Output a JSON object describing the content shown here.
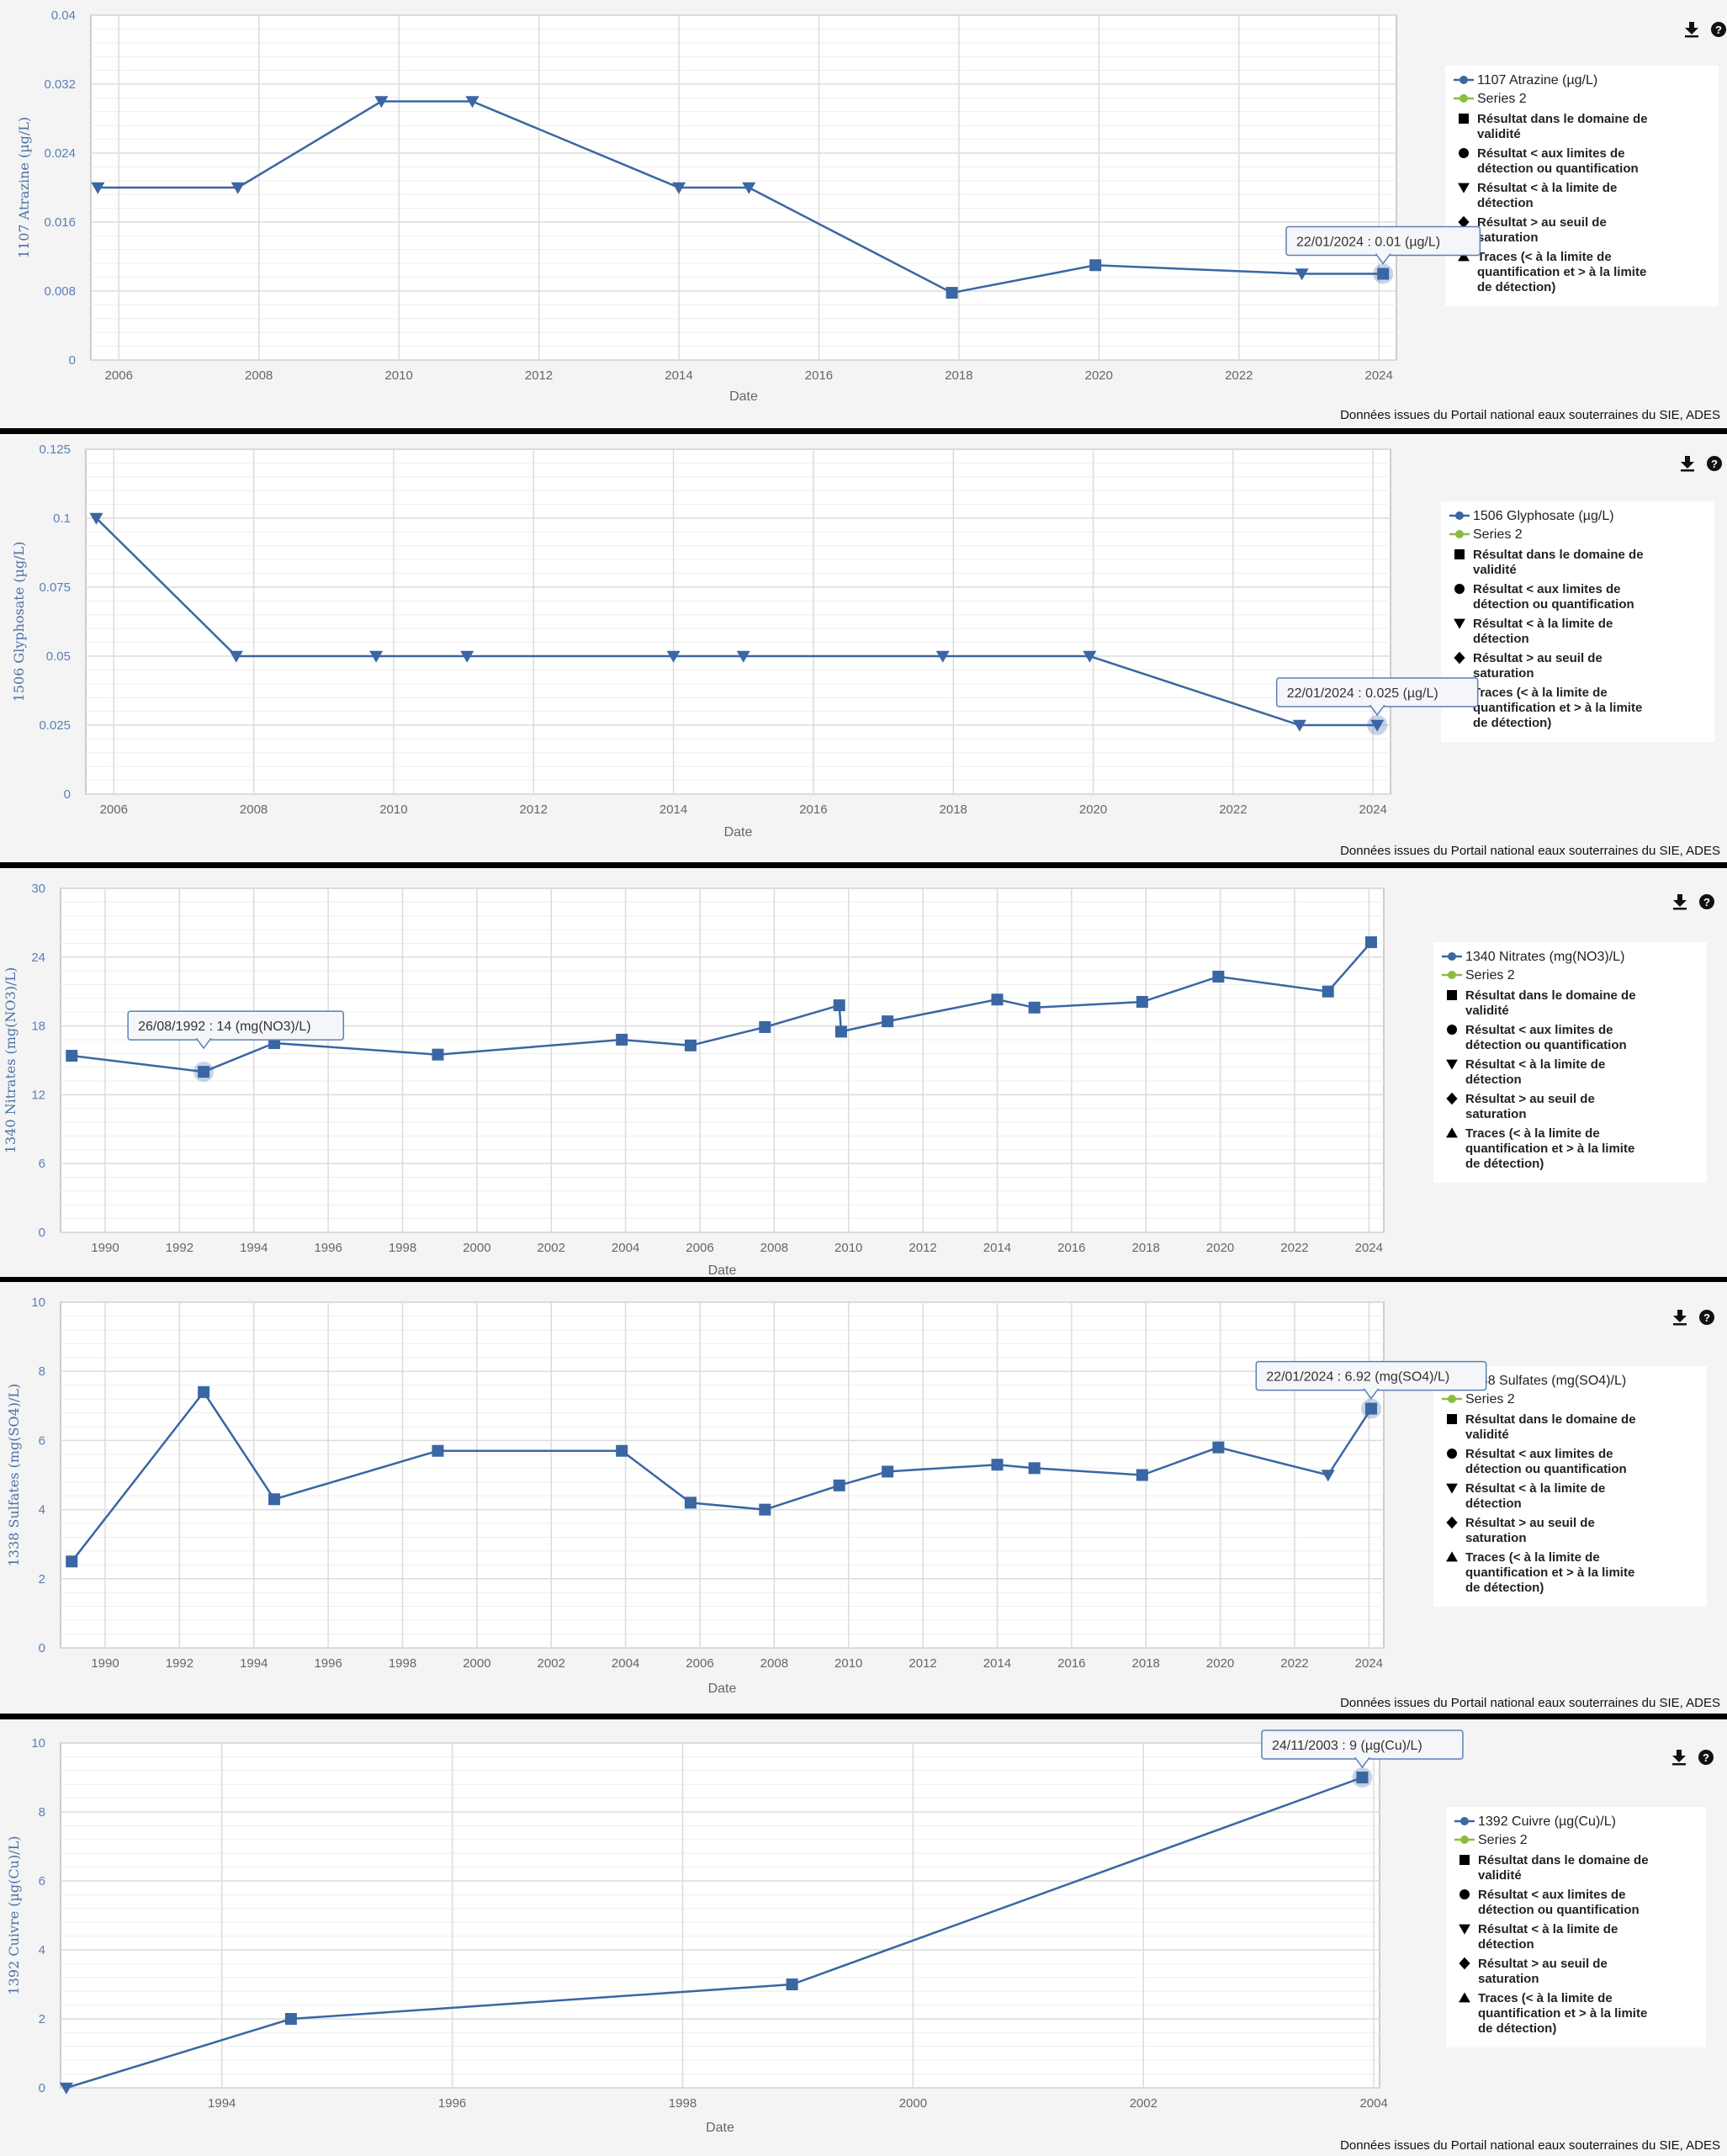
{
  "credits": "Données issues du Portail national eaux souterraines du SIE, ADES",
  "legend_common": [
    {
      "symbol": "square",
      "text": [
        "Résultat dans le domaine de",
        "validité"
      ]
    },
    {
      "symbol": "circle",
      "text": [
        "Résultat < aux limites de",
        "détection ou quantification"
      ]
    },
    {
      "symbol": "triangle-down",
      "text": [
        "Résultat < à la limite de",
        "détection"
      ]
    },
    {
      "symbol": "diamond",
      "text": [
        "Résultat > au seuil de",
        "saturation"
      ]
    },
    {
      "symbol": "triangle-up",
      "text": [
        "Traces (< à la limite de",
        "quantification et > à la limite",
        "de détection)"
      ]
    }
  ],
  "series2_name": "Series 2",
  "icons": {
    "download": "download-icon",
    "help": "help-icon"
  },
  "colors": {
    "series": "#3a66a3",
    "series2": "#8bbc3f",
    "tooltip_border": "#5b7fb8"
  },
  "chart_data": [
    {
      "type": "line",
      "title": "",
      "series_name": "1107 Atrazine (µg/L)",
      "ylabel": "1107 Atrazine (µg/L)",
      "xlabel": "Date",
      "ylim": [
        0,
        0.04
      ],
      "yticks": [
        "0",
        "0.008",
        "0.016",
        "0.024",
        "0.032",
        "0.04"
      ],
      "xlim": [
        2005.6,
        2024.25
      ],
      "xticks": [
        2006,
        2008,
        2010,
        2012,
        2014,
        2016,
        2018,
        2020,
        2022,
        2024
      ],
      "points": [
        {
          "date": "2005-09-15",
          "x": 2005.7,
          "y": 0.02,
          "marker": "triangle-down"
        },
        {
          "date": "2007-09-15",
          "x": 2007.7,
          "y": 0.02,
          "marker": "triangle-down"
        },
        {
          "date": "2009-09-15",
          "x": 2009.75,
          "y": 0.03,
          "marker": "triangle-down"
        },
        {
          "date": "2011-01-15",
          "x": 2011.05,
          "y": 0.03,
          "marker": "triangle-down"
        },
        {
          "date": "2014-01-15",
          "x": 2014.0,
          "y": 0.02,
          "marker": "triangle-down"
        },
        {
          "date": "2015-01-15",
          "x": 2015.0,
          "y": 0.02,
          "marker": "triangle-down"
        },
        {
          "date": "2017-11-15",
          "x": 2017.9,
          "y": 0.0078,
          "marker": "square"
        },
        {
          "date": "2020-01-15",
          "x": 2019.95,
          "y": 0.011,
          "marker": "square"
        },
        {
          "date": "2022-12-15",
          "x": 2022.9,
          "y": 0.01,
          "marker": "triangle-down"
        },
        {
          "date": "2024-01-22",
          "x": 2024.06,
          "y": 0.01,
          "marker": "square"
        }
      ],
      "tooltip": {
        "text": "22/01/2024 : 0.01 (µg/L)",
        "point_index": 9
      },
      "show_xlabel": true,
      "show_credits": true
    },
    {
      "type": "line",
      "title": "",
      "series_name": "1506 Glyphosate (µg/L)",
      "ylabel": "1506 Glyphosate (µg/L)",
      "xlabel": "Date",
      "ylim": [
        0,
        0.125
      ],
      "yticks": [
        "0",
        "0.025",
        "0.05",
        "0.075",
        "0.1",
        "0.125"
      ],
      "xlim": [
        2005.6,
        2024.25
      ],
      "xticks": [
        2006,
        2008,
        2010,
        2012,
        2014,
        2016,
        2018,
        2020,
        2022,
        2024
      ],
      "points": [
        {
          "date": "2005-09-15",
          "x": 2005.75,
          "y": 0.1,
          "marker": "triangle-down"
        },
        {
          "date": "2007-09-15",
          "x": 2007.75,
          "y": 0.05,
          "marker": "triangle-down"
        },
        {
          "date": "2009-09-15",
          "x": 2009.75,
          "y": 0.05,
          "marker": "triangle-down"
        },
        {
          "date": "2011-01-15",
          "x": 2011.05,
          "y": 0.05,
          "marker": "triangle-down"
        },
        {
          "date": "2014-01-15",
          "x": 2014.0,
          "y": 0.05,
          "marker": "triangle-down"
        },
        {
          "date": "2015-01-15",
          "x": 2015.0,
          "y": 0.05,
          "marker": "triangle-down"
        },
        {
          "date": "2017-11-15",
          "x": 2017.85,
          "y": 0.05,
          "marker": "triangle-down"
        },
        {
          "date": "2020-01-15",
          "x": 2019.95,
          "y": 0.05,
          "marker": "triangle-down"
        },
        {
          "date": "2022-12-15",
          "x": 2022.95,
          "y": 0.025,
          "marker": "triangle-down"
        },
        {
          "date": "2024-01-22",
          "x": 2024.06,
          "y": 0.025,
          "marker": "triangle-down"
        }
      ],
      "tooltip": {
        "text": "22/01/2024 : 0.025 (µg/L)",
        "point_index": 9
      },
      "show_xlabel": true,
      "show_credits": true
    },
    {
      "type": "line",
      "title": "",
      "series_name": "1340 Nitrates (mg(NO3)/L)",
      "ylabel": "1340 Nitrates (mg(NO3)/L)",
      "xlabel": "Date",
      "ylim": [
        0,
        30
      ],
      "yticks": [
        "0",
        "6",
        "12",
        "18",
        "24",
        "30"
      ],
      "xlim": [
        1988.8,
        2024.4
      ],
      "xticks": [
        1990,
        1992,
        1994,
        1996,
        1998,
        2000,
        2002,
        2004,
        2006,
        2008,
        2010,
        2012,
        2014,
        2016,
        2018,
        2020,
        2022,
        2024
      ],
      "points": [
        {
          "date": "1989-02-15",
          "x": 1989.1,
          "y": 15.4,
          "marker": "square"
        },
        {
          "date": "1992-08-26",
          "x": 1992.65,
          "y": 14,
          "marker": "square"
        },
        {
          "date": "1994-07-15",
          "x": 1994.55,
          "y": 16.5,
          "marker": "square"
        },
        {
          "date": "1998-12-15",
          "x": 1998.95,
          "y": 15.5,
          "marker": "square"
        },
        {
          "date": "2003-12-15",
          "x": 2003.9,
          "y": 16.8,
          "marker": "square"
        },
        {
          "date": "2005-09-15",
          "x": 2005.75,
          "y": 16.3,
          "marker": "square"
        },
        {
          "date": "2007-09-15",
          "x": 2007.75,
          "y": 17.9,
          "marker": "square"
        },
        {
          "date": "2009-09-15",
          "x": 2009.75,
          "y": 19.8,
          "marker": "square"
        },
        {
          "date": "2009-10-15",
          "x": 2009.8,
          "y": 17.5,
          "marker": "square"
        },
        {
          "date": "2011-01-15",
          "x": 2011.05,
          "y": 18.4,
          "marker": "square"
        },
        {
          "date": "2014-01-15",
          "x": 2014.0,
          "y": 20.3,
          "marker": "square"
        },
        {
          "date": "2015-01-15",
          "x": 2015.0,
          "y": 19.6,
          "marker": "square"
        },
        {
          "date": "2017-11-15",
          "x": 2017.9,
          "y": 20.1,
          "marker": "square"
        },
        {
          "date": "2020-01-15",
          "x": 2019.95,
          "y": 22.3,
          "marker": "square"
        },
        {
          "date": "2022-12-15",
          "x": 2022.9,
          "y": 21,
          "marker": "square"
        },
        {
          "date": "2024-01-22",
          "x": 2024.06,
          "y": 25.3,
          "marker": "square"
        }
      ],
      "tooltip": {
        "text": "26/08/1992 : 14 (mg(NO3)/L)",
        "point_index": 1
      },
      "show_xlabel": true,
      "show_credits": false
    },
    {
      "type": "line",
      "title": "",
      "series_name": "1338 Sulfates (mg(SO4)/L)",
      "ylabel": "1338 Sulfates (mg(SO4)/L)",
      "xlabel": "Date",
      "ylim": [
        0,
        10
      ],
      "yticks": [
        "0",
        "2",
        "4",
        "6",
        "8",
        "10"
      ],
      "xlim": [
        1988.8,
        2024.4
      ],
      "xticks": [
        1990,
        1992,
        1994,
        1996,
        1998,
        2000,
        2002,
        2004,
        2006,
        2008,
        2010,
        2012,
        2014,
        2016,
        2018,
        2020,
        2022,
        2024
      ],
      "points": [
        {
          "date": "1989-02-15",
          "x": 1989.1,
          "y": 2.5,
          "marker": "square"
        },
        {
          "date": "1992-08-26",
          "x": 1992.65,
          "y": 7.4,
          "marker": "square"
        },
        {
          "date": "1994-07-15",
          "x": 1994.55,
          "y": 4.3,
          "marker": "square"
        },
        {
          "date": "1998-12-15",
          "x": 1998.95,
          "y": 5.7,
          "marker": "square"
        },
        {
          "date": "2003-12-15",
          "x": 2003.9,
          "y": 5.7,
          "marker": "square"
        },
        {
          "date": "2005-09-15",
          "x": 2005.75,
          "y": 4.2,
          "marker": "square"
        },
        {
          "date": "2007-09-15",
          "x": 2007.75,
          "y": 4.0,
          "marker": "square"
        },
        {
          "date": "2009-09-15",
          "x": 2009.75,
          "y": 4.7,
          "marker": "square"
        },
        {
          "date": "2011-01-15",
          "x": 2011.05,
          "y": 5.1,
          "marker": "square"
        },
        {
          "date": "2014-01-15",
          "x": 2014.0,
          "y": 5.3,
          "marker": "square"
        },
        {
          "date": "2015-01-15",
          "x": 2015.0,
          "y": 5.2,
          "marker": "square"
        },
        {
          "date": "2017-11-15",
          "x": 2017.9,
          "y": 5.0,
          "marker": "square"
        },
        {
          "date": "2020-01-15",
          "x": 2019.95,
          "y": 5.8,
          "marker": "square"
        },
        {
          "date": "2022-12-15",
          "x": 2022.9,
          "y": 5.0,
          "marker": "triangle-down"
        },
        {
          "date": "2024-01-22",
          "x": 2024.06,
          "y": 6.92,
          "marker": "square"
        }
      ],
      "tooltip": {
        "text": "22/01/2024 : 6.92 (mg(SO4)/L)",
        "point_index": 14
      },
      "show_xlabel": true,
      "show_credits": true
    },
    {
      "type": "line",
      "title": "",
      "series_name": "1392 Cuivre (µg(Cu)/L)",
      "ylabel": "1392 Cuivre (µg(Cu)/L)",
      "xlabel": "Date",
      "ylim": [
        0,
        10
      ],
      "yticks": [
        "0",
        "2",
        "4",
        "6",
        "8",
        "10"
      ],
      "xlim": [
        1992.6,
        2004.05
      ],
      "xticks": [
        1994,
        1996,
        1998,
        2000,
        2002,
        2004
      ],
      "points": [
        {
          "date": "1992-08-26",
          "x": 1992.65,
          "y": 0,
          "marker": "triangle-down"
        },
        {
          "date": "1994-07-15",
          "x": 1994.6,
          "y": 2,
          "marker": "square"
        },
        {
          "date": "1998-12-15",
          "x": 1998.95,
          "y": 3,
          "marker": "square"
        },
        {
          "date": "2003-11-24",
          "x": 2003.9,
          "y": 9,
          "marker": "square"
        }
      ],
      "tooltip": {
        "text": "24/11/2003 : 9 (µg(Cu)/L)",
        "point_index": 3
      },
      "show_xlabel": true,
      "show_credits": true
    }
  ]
}
